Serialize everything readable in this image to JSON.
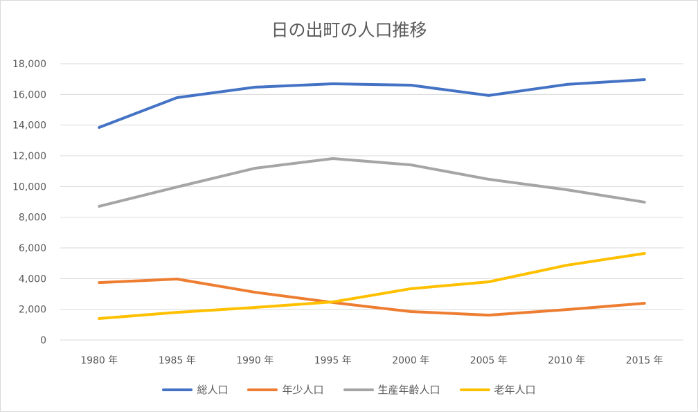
{
  "chart_data": {
    "type": "line",
    "title": "日の出町の人口推移",
    "xlabel": "",
    "ylabel": "",
    "categories": [
      "1980 年",
      "1985 年",
      "1990 年",
      "1995 年",
      "2000 年",
      "2005 年",
      "2010 年",
      "2015 年"
    ],
    "ylim": [
      0,
      18000
    ],
    "yticks": [
      0,
      2000,
      4000,
      6000,
      8000,
      10000,
      12000,
      14000,
      16000,
      18000
    ],
    "ytick_labels": [
      "0",
      "2,000",
      "4,000",
      "6,000",
      "8,000",
      "10,000",
      "12,000",
      "14,000",
      "16,000",
      "18,000"
    ],
    "grid": true,
    "legend_position": "bottom",
    "series": [
      {
        "name": "総人口",
        "color": "#4472c4",
        "values": [
          13850,
          15790,
          16470,
          16690,
          16600,
          15930,
          16650,
          16960
        ]
      },
      {
        "name": "年少人口",
        "color": "#ed7d31",
        "values": [
          3740,
          3970,
          3110,
          2440,
          1850,
          1620,
          1980,
          2390
        ]
      },
      {
        "name": "生産年齢人口",
        "color": "#a5a5a5",
        "values": [
          8710,
          9970,
          11190,
          11820,
          11410,
          10470,
          9790,
          8980
        ]
      },
      {
        "name": "老年人口",
        "color": "#ffc000",
        "values": [
          1400,
          1800,
          2120,
          2480,
          3340,
          3790,
          4870,
          5640
        ]
      }
    ]
  }
}
